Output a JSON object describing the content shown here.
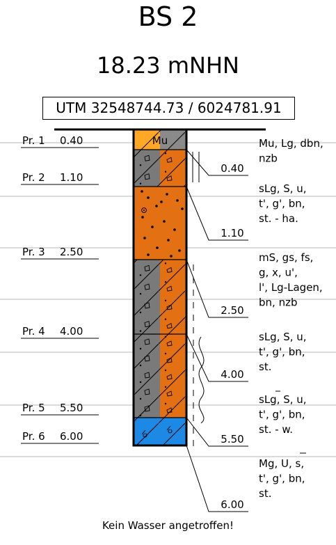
{
  "borehole": {
    "name": "BS 2",
    "elevation": "18.23 mNHN",
    "coordinates": "UTM 32548744.73 / 6024781.91",
    "note": "Kein Wasser angetroffen!"
  },
  "samples": [
    {
      "label": "Pr. 1",
      "depth": "0.40",
      "depth_value": 0.4
    },
    {
      "label": "Pr. 2",
      "depth": "1.10",
      "depth_value": 1.1
    },
    {
      "label": "Pr. 3",
      "depth": "2.50",
      "depth_value": 2.5
    },
    {
      "label": "Pr. 4",
      "depth": "4.00",
      "depth_value": 4.0
    },
    {
      "label": "Pr. 5",
      "depth": "5.50",
      "depth_value": 5.5
    },
    {
      "label": "Pr. 6",
      "depth": "6.00",
      "depth_value": 6.0
    }
  ],
  "layers": [
    {
      "top": 0.0,
      "bottom": 0.4,
      "bottom_label": "0.40",
      "code": "Mu",
      "description": [
        "Mu, Lg, dbn,",
        "nzb"
      ],
      "left_color": "#FFA726",
      "right_color": "#8A8A8A"
    },
    {
      "top": 0.4,
      "bottom": 1.1,
      "bottom_label": "1.10",
      "code": "",
      "description": [
        "sLg, S, u,",
        "t', g', bn,",
        "st. - ha."
      ],
      "left_color": "#7A7A7A",
      "right_color": "#E37012"
    },
    {
      "top": 1.1,
      "bottom": 2.5,
      "bottom_label": "2.50",
      "code": "",
      "description": [
        "mS, gs, fs,",
        "g, x, u',",
        "l', Lg-Lagen,",
        "bn, nzb"
      ],
      "left_color": "#E37012",
      "right_color": "#E37012"
    },
    {
      "top": 2.5,
      "bottom": 4.0,
      "bottom_label": "4.00",
      "code": "",
      "description": [
        "sLg, S, u,",
        "t', g', bn,",
        "st."
      ],
      "left_color": "#7A7A7A",
      "right_color": "#E37012"
    },
    {
      "top": 4.0,
      "bottom": 5.5,
      "bottom_label": "5.50",
      "code": "",
      "description": [
        "sLg, S, u,",
        "t', g', bn,",
        "st. - w."
      ],
      "left_color": "#7A7A7A",
      "right_color": "#E37012"
    },
    {
      "top": 5.5,
      "bottom": 6.0,
      "bottom_label": "6.00",
      "code": "",
      "description": [
        "Mg, U, s,",
        "t', g', bn,",
        "st."
      ],
      "left_color": "#1E88E5",
      "right_color": "#1E88E5"
    }
  ]
}
